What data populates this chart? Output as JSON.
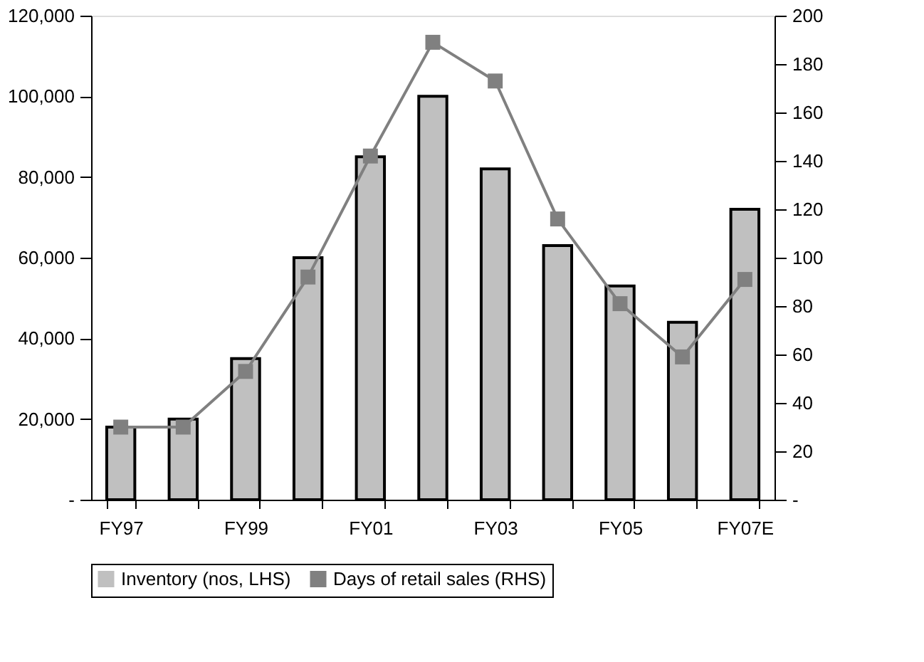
{
  "chart_data": {
    "type": "bar",
    "categories": [
      "FY97",
      null,
      "FY99",
      null,
      "FY01",
      null,
      "FY03",
      null,
      "FY05",
      null,
      "FY07E"
    ],
    "series": [
      {
        "name": "Inventory (nos, LHS)",
        "color": "#c0c0c0",
        "values": [
          18000,
          20000,
          35000,
          60000,
          85000,
          100000,
          82000,
          63000,
          53000,
          44000,
          72000
        ]
      },
      {
        "name": "Days of retail sales (RHS)",
        "type": "line",
        "axis": "y2",
        "color": "#808080",
        "marker": "square",
        "values": [
          30,
          30,
          53,
          92,
          142,
          189,
          173,
          116,
          81,
          59,
          91
        ]
      }
    ],
    "ylim": [
      0,
      120000
    ],
    "yticks": [
      {
        "value": 0,
        "label": "-"
      },
      {
        "value": 20000,
        "label": "20,000"
      },
      {
        "value": 40000,
        "label": "40,000"
      },
      {
        "value": 60000,
        "label": "60,000"
      },
      {
        "value": 80000,
        "label": "80,000"
      },
      {
        "value": 100000,
        "label": "100,000"
      },
      {
        "value": 120000,
        "label": "120,000"
      }
    ],
    "y2lim": [
      0,
      200
    ],
    "y2ticks": [
      {
        "value": 0,
        "label": "-"
      },
      20,
      40,
      60,
      80,
      100,
      120,
      140,
      160,
      180,
      200
    ],
    "grid": false,
    "legend": "bottom"
  }
}
